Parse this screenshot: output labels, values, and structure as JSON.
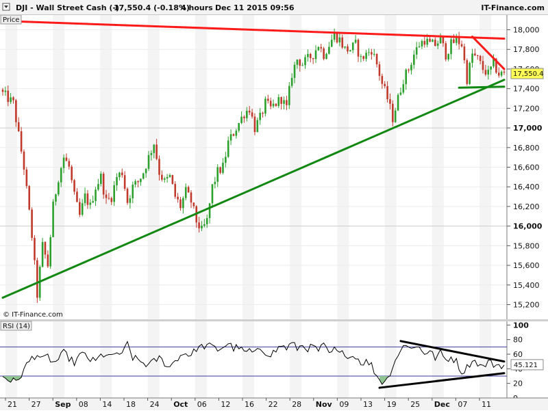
{
  "header": {
    "symbol": "DJI - Wall Street Cash (-)",
    "last_change": "17,550.4 (-0.18%)",
    "timeframe": "4 hours",
    "datetime": "Dec 11 2015 09:56",
    "source": "IT-Finance.com"
  },
  "main_panel": {
    "label": "Price",
    "watermark": "© IT-Finance.com",
    "price_tag": "17,550.4",
    "colors": {
      "up": "#2ca02c",
      "down": "#c0392b",
      "resistance": "#ff1a1a",
      "support": "#118811"
    }
  },
  "rsi_panel": {
    "label": "RSI (14)",
    "value_tag": "45.121",
    "colors": {
      "line": "#000000",
      "band": "#3a3a9a",
      "oversold_fill": "#8fc38f"
    }
  },
  "chart_data": [
    {
      "type": "candlestick",
      "x_axis_labels": [
        "21",
        "27",
        "Sep",
        "08",
        "14",
        "18",
        "24",
        "Oct",
        "06",
        "12",
        "16",
        "22",
        "28",
        "Nov",
        "09",
        "13",
        "19",
        "25",
        "Dec",
        "07",
        "11"
      ],
      "bold_labels": [
        "Sep",
        "Oct",
        "Nov",
        "Dec"
      ],
      "ylim": [
        15050,
        18150
      ],
      "y_ticks": [
        {
          "value": 15200,
          "label": "15,200",
          "bold": false
        },
        {
          "value": 15400,
          "label": "15,400",
          "bold": false
        },
        {
          "value": 15600,
          "label": "15,600",
          "bold": false
        },
        {
          "value": 15800,
          "label": "15,800",
          "bold": false
        },
        {
          "value": 16000,
          "label": "16,000",
          "bold": true
        },
        {
          "value": 16200,
          "label": "16,200",
          "bold": false
        },
        {
          "value": 16400,
          "label": "16,400",
          "bold": false
        },
        {
          "value": 16600,
          "label": "16,600",
          "bold": false
        },
        {
          "value": 16800,
          "label": "16,800",
          "bold": false
        },
        {
          "value": 17000,
          "label": "17,000",
          "bold": true
        },
        {
          "value": 17200,
          "label": "17,200",
          "bold": false
        },
        {
          "value": 17400,
          "label": "17,400",
          "bold": false
        },
        {
          "value": 17600,
          "label": "17,600",
          "bold": false
        },
        {
          "value": 17800,
          "label": "17,800",
          "bold": false
        },
        {
          "value": 18000,
          "label": "18,000",
          "bold": false
        }
      ],
      "last_value": 17550.4,
      "close_path": [
        [
          0,
          17350
        ],
        [
          4,
          17250
        ],
        [
          8,
          16600
        ],
        [
          11,
          15900
        ],
        [
          13,
          15300
        ],
        [
          15,
          15800
        ],
        [
          17,
          15600
        ],
        [
          19,
          16200
        ],
        [
          21,
          16500
        ],
        [
          23,
          16700
        ],
        [
          25,
          16600
        ],
        [
          27,
          16300
        ],
        [
          29,
          16100
        ],
        [
          31,
          16300
        ],
        [
          33,
          16200
        ],
        [
          35,
          16400
        ],
        [
          37,
          16500
        ],
        [
          39,
          16250
        ],
        [
          41,
          16300
        ],
        [
          43,
          16500
        ],
        [
          45,
          16550
        ],
        [
          47,
          16250
        ],
        [
          49,
          16400
        ],
        [
          51,
          16450
        ],
        [
          53,
          16550
        ],
        [
          55,
          16700
        ],
        [
          57,
          16850
        ],
        [
          59,
          16550
        ],
        [
          61,
          16450
        ],
        [
          63,
          16500
        ],
        [
          65,
          16300
        ],
        [
          67,
          16200
        ],
        [
          69,
          16350
        ],
        [
          71,
          16250
        ],
        [
          73,
          16050
        ],
        [
          75,
          15950
        ],
        [
          77,
          16050
        ],
        [
          79,
          16400
        ],
        [
          81,
          16550
        ],
        [
          83,
          16600
        ],
        [
          85,
          16850
        ],
        [
          87,
          16950
        ],
        [
          89,
          17050
        ],
        [
          91,
          17150
        ],
        [
          93,
          17200
        ],
        [
          95,
          17000
        ],
        [
          97,
          17100
        ],
        [
          99,
          17250
        ],
        [
          101,
          17200
        ],
        [
          103,
          17250
        ],
        [
          105,
          17300
        ],
        [
          107,
          17200
        ],
        [
          109,
          17550
        ],
        [
          111,
          17700
        ],
        [
          113,
          17650
        ],
        [
          115,
          17700
        ],
        [
          117,
          17750
        ],
        [
          119,
          17850
        ],
        [
          121,
          17750
        ],
        [
          123,
          17850
        ],
        [
          125,
          17950
        ],
        [
          127,
          17900
        ],
        [
          129,
          17800
        ],
        [
          131,
          17800
        ],
        [
          133,
          17850
        ],
        [
          135,
          17700
        ],
        [
          137,
          17750
        ],
        [
          139,
          17800
        ],
        [
          141,
          17650
        ],
        [
          143,
          17450
        ],
        [
          145,
          17300
        ],
        [
          147,
          17100
        ],
        [
          149,
          17300
        ],
        [
          151,
          17500
        ],
        [
          153,
          17600
        ],
        [
          155,
          17750
        ],
        [
          157,
          17850
        ],
        [
          159,
          17900
        ],
        [
          161,
          17850
        ],
        [
          163,
          17850
        ],
        [
          165,
          17900
        ],
        [
          167,
          17750
        ],
        [
          169,
          17850
        ],
        [
          171,
          17900
        ],
        [
          173,
          17850
        ],
        [
          175,
          17500
        ],
        [
          177,
          17750
        ],
        [
          179,
          17700
        ],
        [
          181,
          17600
        ],
        [
          183,
          17550
        ],
        [
          185,
          17650
        ],
        [
          187,
          17550
        ],
        [
          189,
          17550
        ]
      ],
      "trend_lines": [
        {
          "name": "resistance-line",
          "color": "#ff1a1a",
          "from": [
            0,
            18090
          ],
          "to": [
            189,
            17910
          ]
        },
        {
          "name": "resistance-short",
          "color": "#ff1a1a",
          "from": [
            177,
            17930
          ],
          "to": [
            189,
            17600
          ]
        },
        {
          "name": "support-line",
          "color": "#118811",
          "from": [
            0,
            15270
          ],
          "to": [
            189,
            17490
          ]
        },
        {
          "name": "support-flat",
          "color": "#118811",
          "from": [
            172,
            17410
          ],
          "to": [
            189,
            17420
          ]
        }
      ]
    },
    {
      "type": "line",
      "name": "RSI (14)",
      "ylim": [
        0,
        105
      ],
      "y_ticks": [
        0,
        20,
        40,
        60,
        80,
        100
      ],
      "bands": [
        30,
        70
      ],
      "last_value": 45.121,
      "values_path": [
        [
          0,
          30
        ],
        [
          3,
          24
        ],
        [
          5,
          22
        ],
        [
          7,
          32
        ],
        [
          9,
          45
        ],
        [
          11,
          55
        ],
        [
          13,
          60
        ],
        [
          15,
          52
        ],
        [
          17,
          57
        ],
        [
          19,
          48
        ],
        [
          21,
          53
        ],
        [
          23,
          62
        ],
        [
          25,
          55
        ],
        [
          27,
          48
        ],
        [
          29,
          58
        ],
        [
          31,
          60
        ],
        [
          33,
          52
        ],
        [
          35,
          50
        ],
        [
          37,
          58
        ],
        [
          39,
          60
        ],
        [
          41,
          55
        ],
        [
          43,
          63
        ],
        [
          45,
          58
        ],
        [
          47,
          75
        ],
        [
          49,
          55
        ],
        [
          51,
          52
        ],
        [
          53,
          48
        ],
        [
          55,
          45
        ],
        [
          57,
          50
        ],
        [
          59,
          55
        ],
        [
          61,
          48
        ],
        [
          63,
          42
        ],
        [
          65,
          52
        ],
        [
          67,
          58
        ],
        [
          69,
          62
        ],
        [
          71,
          58
        ],
        [
          73,
          68
        ],
        [
          75,
          70
        ],
        [
          77,
          72
        ],
        [
          79,
          70
        ],
        [
          81,
          66
        ],
        [
          83,
          70
        ],
        [
          85,
          75
        ],
        [
          87,
          68
        ],
        [
          89,
          70
        ],
        [
          91,
          62
        ],
        [
          93,
          65
        ],
        [
          95,
          60
        ],
        [
          97,
          68
        ],
        [
          99,
          63
        ],
        [
          101,
          60
        ],
        [
          103,
          65
        ],
        [
          105,
          72
        ],
        [
          107,
          68
        ],
        [
          109,
          75
        ],
        [
          111,
          68
        ],
        [
          113,
          72
        ],
        [
          115,
          68
        ],
        [
          117,
          70
        ],
        [
          119,
          65
        ],
        [
          121,
          72
        ],
        [
          123,
          60
        ],
        [
          125,
          66
        ],
        [
          127,
          60
        ],
        [
          129,
          62
        ],
        [
          131,
          56
        ],
        [
          133,
          58
        ],
        [
          135,
          48
        ],
        [
          137,
          50
        ],
        [
          139,
          45
        ],
        [
          141,
          30
        ],
        [
          143,
          22
        ],
        [
          145,
          26
        ],
        [
          147,
          44
        ],
        [
          149,
          60
        ],
        [
          151,
          70
        ],
        [
          153,
          73
        ],
        [
          155,
          68
        ],
        [
          157,
          70
        ],
        [
          159,
          62
        ],
        [
          161,
          64
        ],
        [
          163,
          55
        ],
        [
          165,
          62
        ],
        [
          167,
          52
        ],
        [
          169,
          56
        ],
        [
          171,
          50
        ],
        [
          173,
          35
        ],
        [
          175,
          42
        ],
        [
          177,
          52
        ],
        [
          179,
          48
        ],
        [
          181,
          42
        ],
        [
          183,
          50
        ],
        [
          185,
          46
        ],
        [
          187,
          45
        ],
        [
          189,
          45
        ]
      ],
      "trend_lines": [
        {
          "name": "rsi-resistance-line",
          "from": [
            150,
            78
          ],
          "to": [
            189,
            50
          ]
        },
        {
          "name": "rsi-support-line",
          "from": [
            142,
            14
          ],
          "to": [
            189,
            34
          ]
        }
      ]
    }
  ]
}
